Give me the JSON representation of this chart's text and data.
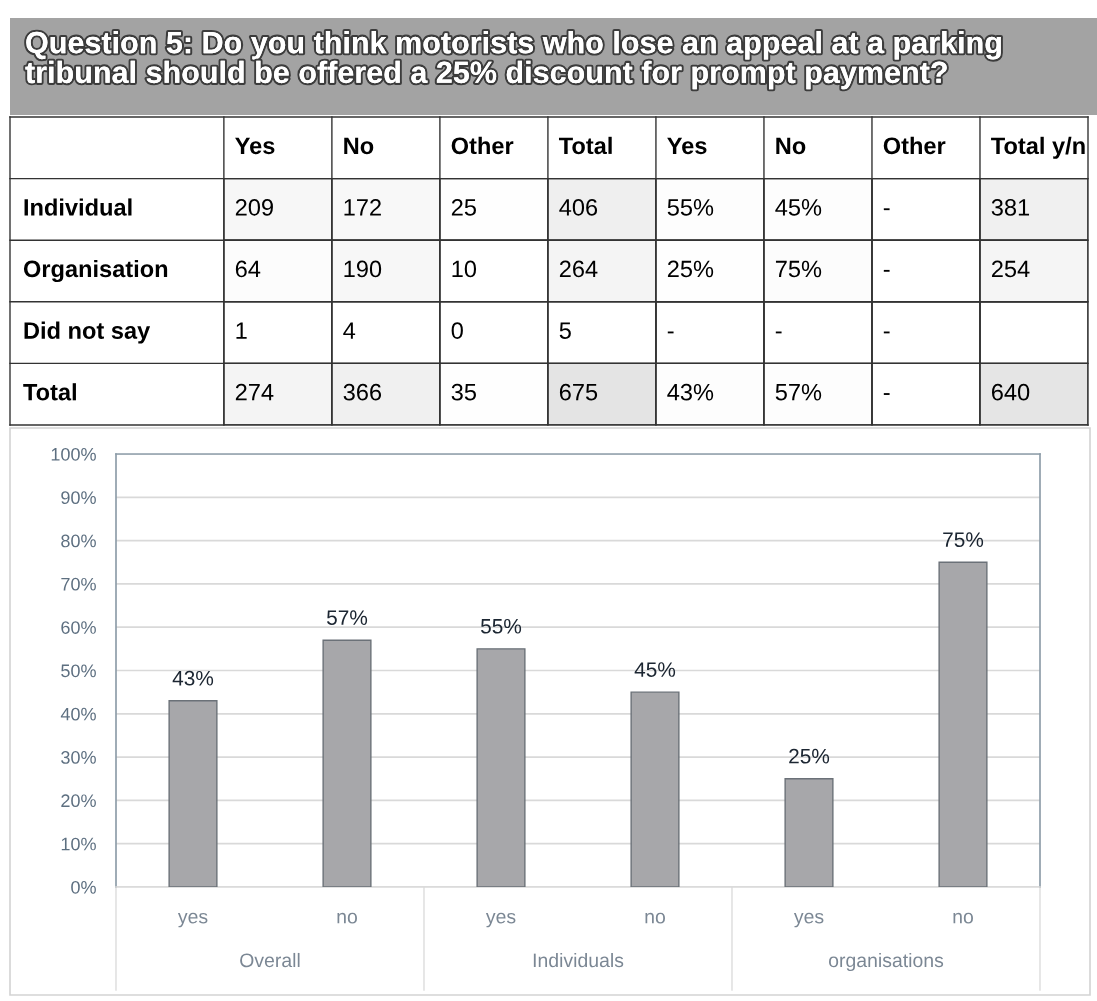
{
  "chart_data": [
    {
      "type": "heatmap",
      "title": "Question 5: Do you think motorists who lose an appeal at a parking tribunal should be offered a 25% discount for prompt payment?",
      "categories": [
        "Yes",
        "No",
        "Other",
        "Total",
        "Yes",
        "No",
        "Other",
        "Total y/n"
      ],
      "y_categories": [
        "Individual",
        "Organisation",
        "Did not say",
        "Total"
      ],
      "cells": [
        [
          209,
          172,
          25,
          406,
          55,
          45,
          null,
          381
        ],
        [
          64,
          190,
          10,
          264,
          25,
          75,
          null,
          254
        ],
        [
          1,
          4,
          0,
          5,
          null,
          null,
          null,
          null
        ],
        [
          274,
          366,
          35,
          675,
          43,
          57,
          null,
          640
        ]
      ],
      "cell_labels": [
        [
          "209",
          "172",
          "25",
          "406",
          "55%",
          "45%",
          "-",
          "381"
        ],
        [
          "64",
          "190",
          "10",
          "264",
          "25%",
          "75%",
          "-",
          "254"
        ],
        [
          "1",
          "4",
          "0",
          "5",
          "-",
          "-",
          "-",
          null
        ],
        [
          "274",
          "366",
          "35",
          "675",
          "43%",
          "57%",
          "-",
          "640"
        ]
      ]
    },
    {
      "type": "bar",
      "categories": [
        "yes",
        "no",
        "yes",
        "no",
        "yes",
        "no"
      ],
      "values": [
        43,
        57,
        55,
        45,
        25,
        75
      ],
      "color": "#a7a7aa",
      "value_labels": [
        "43%",
        "57%",
        "55%",
        "45%",
        "25%",
        "75%"
      ],
      "ylim": [
        0,
        100
      ],
      "yticks": [
        {
          "value": 0,
          "label": "0%"
        },
        {
          "value": 10,
          "label": "10%"
        },
        {
          "value": 20,
          "label": "20%"
        },
        {
          "value": 30,
          "label": "30%"
        },
        {
          "value": 40,
          "label": "40%"
        },
        {
          "value": 50,
          "label": "50%"
        },
        {
          "value": 60,
          "label": "60%"
        },
        {
          "value": 70,
          "label": "70%"
        },
        {
          "value": 80,
          "label": "80%"
        },
        {
          "value": 90,
          "label": "90%"
        },
        {
          "value": 100,
          "label": "100%"
        }
      ],
      "grid": "y",
      "annotations": [
        "Overall",
        "Individuals",
        "organisations"
      ]
    }
  ]
}
